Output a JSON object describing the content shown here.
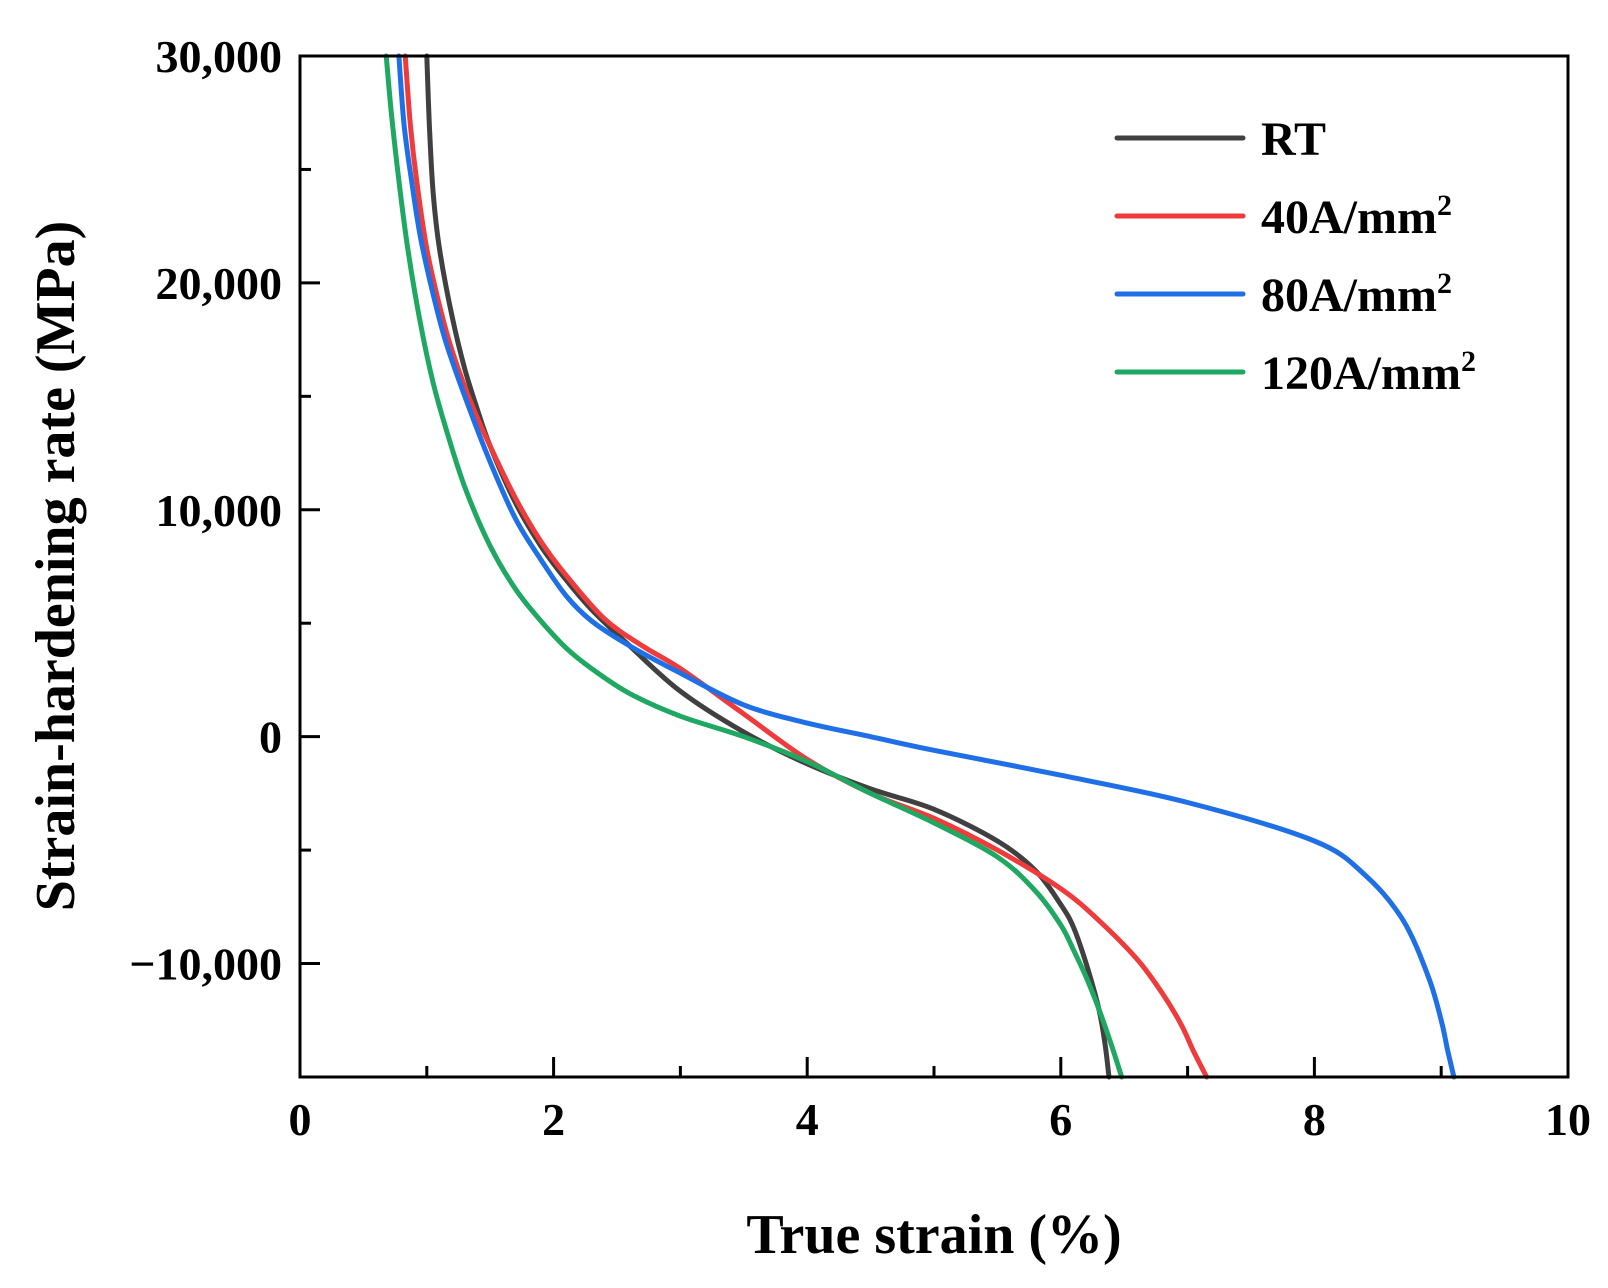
{
  "chart_data": {
    "type": "line",
    "title": "",
    "xlabel": "True strain (%)",
    "ylabel": "Strain-hardening rate (MPa)",
    "xlim": [
      0,
      10
    ],
    "ylim": [
      -15000,
      30000
    ],
    "x_ticks": [
      0,
      2,
      4,
      6,
      8,
      10
    ],
    "x_tick_labels": [
      "0",
      "2",
      "4",
      "6",
      "8",
      "10"
    ],
    "x_minor_ticks": [
      1,
      3,
      5,
      7,
      9
    ],
    "y_ticks": [
      30000,
      20000,
      10000,
      0,
      -10000
    ],
    "y_tick_labels": [
      "30,000",
      "20,000",
      "10,000",
      "0",
      "−10,000"
    ],
    "y_minor_ticks": [
      25000,
      15000,
      5000,
      -5000
    ],
    "grid": false,
    "legend_position": "top-right",
    "series": [
      {
        "name": "RT",
        "name_main": "RT",
        "name_sup": "",
        "color": "#404040",
        "x": [
          1.0,
          1.02,
          1.05,
          1.1,
          1.2,
          1.3,
          1.4,
          1.5,
          1.7,
          1.9,
          2.1,
          2.3,
          2.6,
          3.0,
          3.5,
          4.0,
          4.5,
          5.0,
          5.5,
          5.8,
          6.0,
          6.1,
          6.2,
          6.3,
          6.35,
          6.38
        ],
        "y": [
          30000,
          27000,
          24000,
          21500,
          18500,
          16200,
          14400,
          12800,
          10300,
          8400,
          6900,
          5600,
          4000,
          2000,
          200,
          -1200,
          -2300,
          -3200,
          -4600,
          -5900,
          -7400,
          -8400,
          -10000,
          -12000,
          -13600,
          -15000
        ]
      },
      {
        "name": "40A/mm2",
        "name_main": "40A/mm",
        "name_sup": "2",
        "color": "#ef3b3b",
        "x": [
          0.83,
          0.87,
          0.92,
          1.0,
          1.1,
          1.2,
          1.35,
          1.5,
          1.7,
          1.9,
          2.1,
          2.4,
          2.7,
          3.0,
          3.5,
          4.0,
          4.5,
          5.0,
          5.5,
          6.0,
          6.3,
          6.6,
          6.8,
          6.95,
          7.05,
          7.15
        ],
        "y": [
          30000,
          27000,
          24500,
          21500,
          19000,
          17000,
          14700,
          12800,
          10500,
          8600,
          7100,
          5200,
          4000,
          3000,
          1000,
          -1000,
          -2500,
          -3600,
          -5000,
          -6700,
          -8100,
          -9800,
          -11300,
          -12700,
          -13900,
          -15000
        ]
      },
      {
        "name": "80A/mm2",
        "name_main": "80A/mm",
        "name_sup": "2",
        "color": "#1f6fe6",
        "x": [
          0.78,
          0.82,
          0.88,
          0.95,
          1.05,
          1.15,
          1.3,
          1.5,
          1.7,
          1.9,
          2.1,
          2.3,
          2.6,
          3.0,
          3.5,
          4.0,
          4.5,
          5.0,
          6.0,
          7.0,
          8.0,
          8.4,
          8.7,
          8.9,
          9.0,
          9.05,
          9.1
        ],
        "y": [
          30000,
          27000,
          24500,
          22000,
          19500,
          17400,
          15000,
          12100,
          9600,
          7800,
          6200,
          5100,
          4000,
          2800,
          1400,
          600,
          0,
          -600,
          -1700,
          -2900,
          -4600,
          -6100,
          -8100,
          -10600,
          -12500,
          -13800,
          -15000
        ]
      },
      {
        "name": "120A/mm2",
        "name_main": "120A/mm",
        "name_sup": "2",
        "color": "#1ea861",
        "x": [
          0.68,
          0.72,
          0.78,
          0.85,
          0.95,
          1.05,
          1.15,
          1.3,
          1.5,
          1.7,
          1.9,
          2.1,
          2.3,
          2.6,
          3.0,
          3.5,
          4.0,
          4.5,
          5.0,
          5.5,
          5.8,
          6.0,
          6.1,
          6.2,
          6.3,
          6.4,
          6.48
        ],
        "y": [
          30000,
          27500,
          24500,
          21500,
          18200,
          15600,
          13600,
          11000,
          8400,
          6500,
          5100,
          3900,
          3000,
          1900,
          900,
          0,
          -1100,
          -2500,
          -3800,
          -5300,
          -6800,
          -8300,
          -9400,
          -10600,
          -12000,
          -13600,
          -15000
        ]
      }
    ]
  }
}
